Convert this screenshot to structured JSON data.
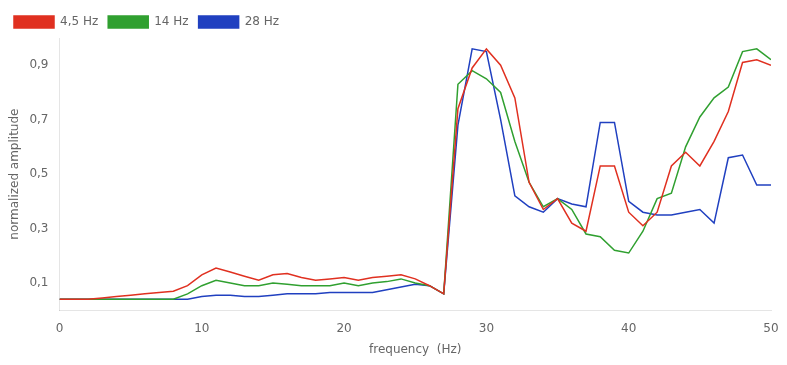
{
  "chart_data": {
    "type": "line",
    "xlabel": "frequency  (Hz)",
    "ylabel": "normalized amplitude",
    "xlim": [
      0,
      50
    ],
    "ylim": [
      0,
      1.0
    ],
    "xticks": [
      0,
      10,
      20,
      30,
      40,
      50
    ],
    "yticks": [
      {
        "value": 0.1,
        "label": "0,1"
      },
      {
        "value": 0.3,
        "label": "0,3"
      },
      {
        "value": 0.5,
        "label": "0,5"
      },
      {
        "value": 0.7,
        "label": "0,7"
      },
      {
        "value": 0.9,
        "label": "0,9"
      }
    ],
    "grid": false,
    "legend": "upper left",
    "x": [
      0,
      1,
      2,
      3,
      4,
      5,
      6,
      7,
      8,
      9,
      10,
      11,
      12,
      13,
      14,
      15,
      16,
      17,
      18,
      19,
      20,
      21,
      22,
      23,
      24,
      25,
      26,
      27,
      28,
      29,
      30,
      31,
      32,
      33,
      34,
      35,
      36,
      37,
      38,
      39,
      40,
      41,
      42,
      43,
      44,
      45,
      46,
      47,
      48,
      49,
      50
    ],
    "series": [
      {
        "name": "4,5 Hz",
        "color": "#e03020",
        "values": [
          0.04,
          0.04,
          0.04,
          0.045,
          0.05,
          0.055,
          0.06,
          0.065,
          0.07,
          0.09,
          0.13,
          0.155,
          0.14,
          0.125,
          0.11,
          0.13,
          0.135,
          0.12,
          0.11,
          0.115,
          0.12,
          0.11,
          0.12,
          0.125,
          0.13,
          0.115,
          0.09,
          0.06,
          0.74,
          0.89,
          0.96,
          0.9,
          0.78,
          0.47,
          0.37,
          0.41,
          0.32,
          0.29,
          0.53,
          0.53,
          0.36,
          0.31,
          0.36,
          0.53,
          0.58,
          0.53,
          0.62,
          0.73,
          0.91,
          0.92,
          0.9
        ]
      },
      {
        "name": "14 Hz",
        "color": "#30a030",
        "values": [
          0.04,
          0.04,
          0.04,
          0.04,
          0.04,
          0.04,
          0.04,
          0.04,
          0.04,
          0.06,
          0.09,
          0.11,
          0.1,
          0.09,
          0.09,
          0.1,
          0.095,
          0.09,
          0.09,
          0.09,
          0.1,
          0.09,
          0.1,
          0.105,
          0.115,
          0.1,
          0.09,
          0.06,
          0.83,
          0.88,
          0.85,
          0.8,
          0.62,
          0.47,
          0.38,
          0.41,
          0.37,
          0.28,
          0.27,
          0.22,
          0.21,
          0.29,
          0.41,
          0.43,
          0.6,
          0.71,
          0.78,
          0.82,
          0.95,
          0.96,
          0.92
        ]
      },
      {
        "name": "28 Hz",
        "color": "#2040c0",
        "values": [
          0.04,
          0.04,
          0.04,
          0.04,
          0.04,
          0.04,
          0.04,
          0.04,
          0.04,
          0.04,
          0.05,
          0.055,
          0.055,
          0.05,
          0.05,
          0.055,
          0.06,
          0.06,
          0.06,
          0.065,
          0.065,
          0.065,
          0.065,
          0.075,
          0.085,
          0.095,
          0.09,
          0.06,
          0.68,
          0.96,
          0.95,
          0.7,
          0.42,
          0.38,
          0.36,
          0.41,
          0.39,
          0.38,
          0.69,
          0.69,
          0.4,
          0.36,
          0.35,
          0.35,
          0.36,
          0.37,
          0.32,
          0.56,
          0.57,
          0.46,
          0.46
        ]
      }
    ]
  }
}
